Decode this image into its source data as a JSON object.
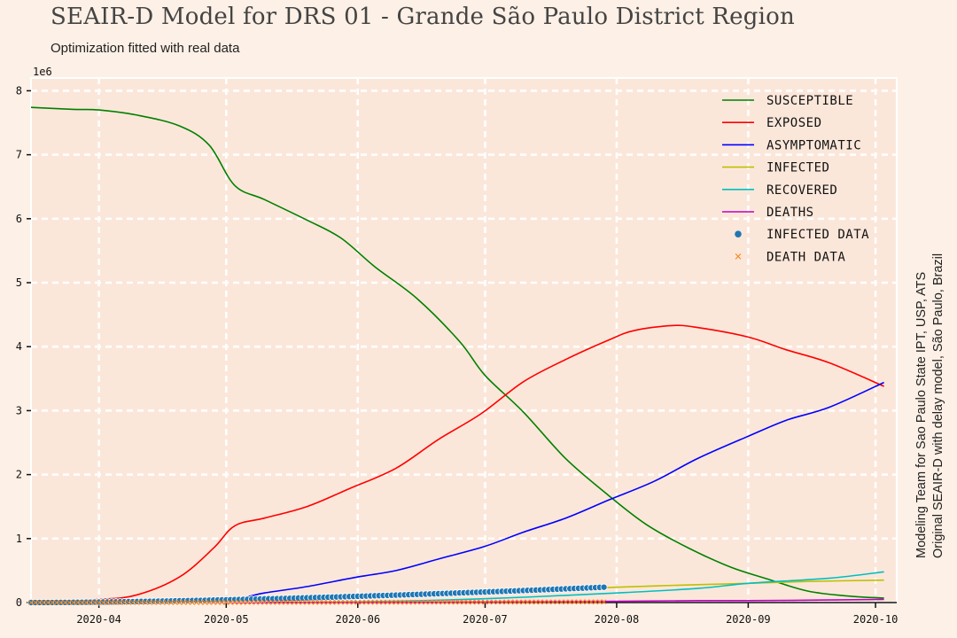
{
  "header": {
    "title": "SEAIR-D Model for DRS 01 - Grande São Paulo District Region",
    "subtitle": "Optimization fitted with real data"
  },
  "credits": {
    "line1": "Modeling Team for Sao Paulo State IPT, USP, ATS",
    "line2": "Original SEAIR-D with delay model, São Paulo, Brazil"
  },
  "colors": {
    "background": "#fdf0e6",
    "plot_background": "#fbe7da",
    "grid": "#ffffff",
    "susceptible": "#008000",
    "exposed": "#ff0000",
    "asymptomatic": "#0000ff",
    "infected": "#bfbf00",
    "recovered": "#00bfbf",
    "deaths": "#bf00bf",
    "infected_data": "#1f77b4",
    "death_data": "#ff7f0e"
  },
  "chart_data": {
    "type": "line",
    "title": "SEAIR-D Model for DRS 01 - Grande São Paulo District Region",
    "subtitle": "Optimization fitted with real data",
    "xlabel": "",
    "ylabel": "",
    "y_scale_label": "1e6",
    "y_unit": 1000000,
    "xlim": [
      "2020-03-16",
      "2020-10-06"
    ],
    "ylim": [
      0,
      8.2
    ],
    "x_ticks": [
      "2020-04-01",
      "2020-05-01",
      "2020-06-01",
      "2020-07-01",
      "2020-08-01",
      "2020-09-01",
      "2020-10-01"
    ],
    "x_tick_labels": [
      "2020-04",
      "2020-05",
      "2020-06",
      "2020-07",
      "2020-08",
      "2020-09",
      "2020-10"
    ],
    "y_ticks": [
      0,
      1,
      2,
      3,
      4,
      5,
      6,
      7,
      8
    ],
    "y_tick_labels": [
      "0",
      "1",
      "2",
      "3",
      "4",
      "5",
      "6",
      "7",
      "8"
    ],
    "grid": true,
    "legend_position": "top-right",
    "series": [
      {
        "name": "Susceptible",
        "color_key": "susceptible",
        "kind": "line",
        "x": [
          "2020-03-16",
          "2020-03-26",
          "2020-04-01",
          "2020-04-10",
          "2020-04-20",
          "2020-04-27",
          "2020-05-03",
          "2020-05-10",
          "2020-05-20",
          "2020-05-28",
          "2020-06-05",
          "2020-06-15",
          "2020-06-25",
          "2020-07-01",
          "2020-07-10",
          "2020-07-20",
          "2020-07-30",
          "2020-08-08",
          "2020-08-18",
          "2020-08-28",
          "2020-09-05",
          "2020-09-15",
          "2020-09-25",
          "2020-10-03"
        ],
        "y": [
          7.74,
          7.71,
          7.7,
          7.62,
          7.45,
          7.15,
          6.52,
          6.3,
          5.98,
          5.7,
          5.25,
          4.75,
          4.08,
          3.55,
          2.98,
          2.25,
          1.68,
          1.22,
          0.85,
          0.55,
          0.38,
          0.18,
          0.1,
          0.07
        ]
      },
      {
        "name": "Exposed",
        "color_key": "exposed",
        "kind": "line",
        "x": [
          "2020-03-16",
          "2020-04-01",
          "2020-04-10",
          "2020-04-20",
          "2020-04-28",
          "2020-05-03",
          "2020-05-10",
          "2020-05-20",
          "2020-05-30",
          "2020-06-10",
          "2020-06-20",
          "2020-06-30",
          "2020-07-10",
          "2020-07-20",
          "2020-07-30",
          "2020-08-05",
          "2020-08-14",
          "2020-08-20",
          "2020-09-01",
          "2020-09-10",
          "2020-09-20",
          "2020-10-03"
        ],
        "y": [
          0.01,
          0.05,
          0.12,
          0.4,
          0.85,
          1.2,
          1.32,
          1.5,
          1.78,
          2.1,
          2.55,
          2.95,
          3.45,
          3.8,
          4.1,
          4.25,
          4.33,
          4.3,
          4.15,
          3.95,
          3.75,
          3.38
        ]
      },
      {
        "name": "Asymptomatic",
        "color_key": "asymptomatic",
        "kind": "line",
        "x": [
          "2020-03-16",
          "2020-04-20",
          "2020-05-03",
          "2020-05-10",
          "2020-05-20",
          "2020-06-01",
          "2020-06-10",
          "2020-06-20",
          "2020-07-01",
          "2020-07-10",
          "2020-07-20",
          "2020-07-30",
          "2020-08-10",
          "2020-08-20",
          "2020-09-01",
          "2020-09-10",
          "2020-09-20",
          "2020-10-03"
        ],
        "y": [
          0.0,
          0.02,
          0.06,
          0.15,
          0.25,
          0.4,
          0.5,
          0.68,
          0.88,
          1.1,
          1.32,
          1.6,
          1.9,
          2.25,
          2.6,
          2.85,
          3.05,
          3.44
        ]
      },
      {
        "name": "Infected",
        "color_key": "infected",
        "kind": "line",
        "x": [
          "2020-03-16",
          "2020-05-01",
          "2020-06-01",
          "2020-07-01",
          "2020-07-20",
          "2020-08-01",
          "2020-08-20",
          "2020-09-01",
          "2020-09-15",
          "2020-10-03"
        ],
        "y": [
          0.0,
          0.02,
          0.07,
          0.15,
          0.2,
          0.24,
          0.28,
          0.3,
          0.33,
          0.35
        ]
      },
      {
        "name": "Recovered",
        "color_key": "recovered",
        "kind": "line",
        "x": [
          "2020-03-16",
          "2020-05-01",
          "2020-06-01",
          "2020-07-01",
          "2020-08-01",
          "2020-08-20",
          "2020-09-01",
          "2020-09-20",
          "2020-10-03"
        ],
        "y": [
          0.0,
          0.0,
          0.01,
          0.06,
          0.15,
          0.22,
          0.3,
          0.38,
          0.48
        ]
      },
      {
        "name": "Deaths",
        "color_key": "deaths",
        "kind": "line",
        "x": [
          "2020-03-16",
          "2020-06-01",
          "2020-07-01",
          "2020-08-01",
          "2020-08-20",
          "2020-09-01",
          "2020-09-20",
          "2020-10-03"
        ],
        "y": [
          0.0,
          0.0,
          0.01,
          0.02,
          0.03,
          0.03,
          0.04,
          0.05
        ]
      },
      {
        "name": "Infected Data",
        "color_key": "infected_data",
        "kind": "scatter",
        "x_start": "2020-03-16",
        "x_end": "2020-07-29",
        "y_start": 0.0,
        "y_end": 0.24
      },
      {
        "name": "Death Data",
        "color_key": "death_data",
        "kind": "scatter-x",
        "x_start": "2020-03-16",
        "x_end": "2020-07-29",
        "y_start": 0.0,
        "y_end": 0.011
      }
    ]
  }
}
